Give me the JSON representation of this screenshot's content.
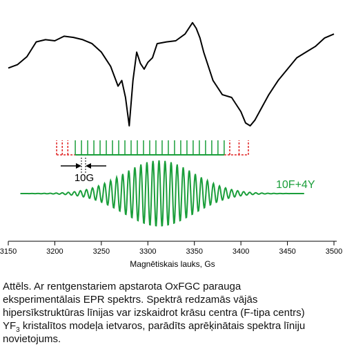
{
  "chart_data": {
    "type": "line",
    "xlabel": "Magnētiskais lauks, Gs",
    "xlim": [
      3150,
      3500
    ],
    "xticks": [
      3150,
      3200,
      3250,
      3300,
      3350,
      3400,
      3450,
      3500
    ],
    "grid": false,
    "series": [
      {
        "role": "experimental",
        "color": "#000000",
        "x": [
          3150,
          3160,
          3170,
          3180,
          3190,
          3200,
          3210,
          3220,
          3230,
          3240,
          3250,
          3260,
          3268,
          3272,
          3276,
          3280,
          3284,
          3288,
          3292,
          3296,
          3300,
          3305,
          3310,
          3320,
          3330,
          3340,
          3348,
          3352,
          3356,
          3360,
          3370,
          3380,
          3390,
          3400,
          3405,
          3410,
          3415,
          3420,
          3430,
          3440,
          3450,
          3460,
          3470,
          3480,
          3490,
          3500
        ],
        "y": [
          0.02,
          0.08,
          0.22,
          0.48,
          0.52,
          0.5,
          0.58,
          0.56,
          0.52,
          0.45,
          0.3,
          0.05,
          -0.3,
          -0.2,
          -0.5,
          -1.0,
          -0.2,
          0.3,
          0.1,
          0.0,
          0.12,
          0.2,
          0.45,
          0.48,
          0.5,
          0.62,
          0.82,
          0.72,
          0.55,
          0.3,
          -0.2,
          -0.45,
          -0.5,
          -0.75,
          -0.95,
          -1.0,
          -0.9,
          -0.75,
          -0.45,
          -0.2,
          0.0,
          0.2,
          0.3,
          0.4,
          0.55,
          0.62
        ]
      },
      {
        "name": "10F+4Y",
        "role": "calculated",
        "color": "#1a9e3a",
        "center": 3312,
        "spacing": 6.5,
        "amplitude": 1.0,
        "x_range": [
          3163,
          3468
        ]
      }
    ],
    "stick_diagram": {
      "solid_color": "#1a9e3a",
      "dashed_color": "#e02020",
      "solid_x_range": [
        3222,
        3382
      ],
      "solid_line_count": 25,
      "dashed_left_x": [
        3202,
        3208,
        3214
      ],
      "dashed_right_x": [
        3388,
        3398,
        3408
      ]
    },
    "annotations": [
      {
        "text": "10G",
        "color": "#000000"
      },
      {
        "text": "10F+4Y",
        "color": "#1a9e3a"
      }
    ]
  },
  "caption": {
    "line1": "Attēls. Ar rentgenstariem apstarota OxFGC parauga",
    "line2": "eksperimentālais EPR spektrs. Spektrā redzamās vājās",
    "line3": "hipersīkstruktūras līnijas var izskaidrot krāsu centra (F-tipa centrs)",
    "line4_pre": "YF",
    "line4_sub": "3",
    "line4_post": " kristalītos modeļa ietvaros, parādīts aprēķinātais spektra līniju",
    "line5": "novietojums."
  }
}
